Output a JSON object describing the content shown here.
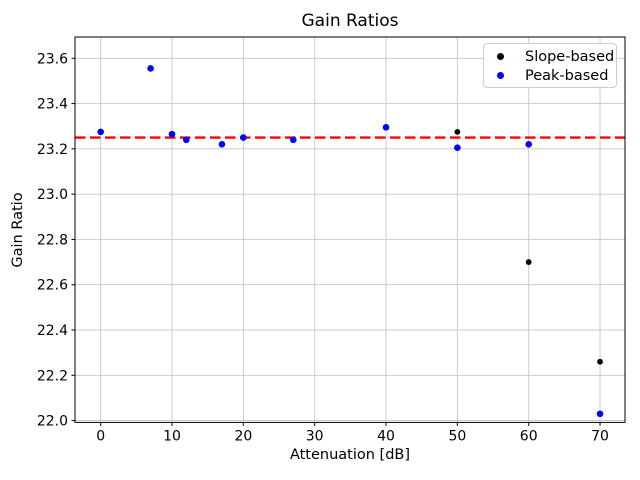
{
  "title": "Gain Ratios",
  "legend": [
    {
      "label": "Slope-based",
      "color": "#000000"
    },
    {
      "label": "Peak-based",
      "color": "#0000ff"
    }
  ],
  "chart_data": {
    "type": "scatter",
    "title": "Gain Ratios",
    "xlabel": "Attenuation [dB]",
    "ylabel": "Gain Ratio",
    "xlim": [
      -3.6,
      73.5
    ],
    "ylim": [
      21.992,
      23.694
    ],
    "x_ticks": [
      0,
      10,
      20,
      30,
      40,
      50,
      60,
      70
    ],
    "y_ticks": [
      22.0,
      22.2,
      22.4,
      22.6,
      22.8,
      23.0,
      23.2,
      23.4,
      23.6
    ],
    "grid": true,
    "grid_color": "#c6c6c6",
    "legend_position": "upper right",
    "series": [
      {
        "name": "Slope-based",
        "color": "#000000",
        "marker_radius": 2.9,
        "points": [
          [
            20,
            23.25
          ],
          [
            50,
            23.275
          ],
          [
            60,
            22.7
          ],
          [
            70,
            22.26
          ]
        ]
      },
      {
        "name": "Peak-based",
        "color": "#0000ff",
        "marker_radius": 3.3,
        "points": [
          [
            0,
            23.275
          ],
          [
            7,
            23.555
          ],
          [
            10,
            23.265
          ],
          [
            12,
            23.24
          ],
          [
            17,
            23.22
          ],
          [
            20,
            23.25
          ],
          [
            27,
            23.24
          ],
          [
            40,
            23.295
          ],
          [
            50,
            23.205
          ],
          [
            60,
            23.22
          ],
          [
            70,
            22.03
          ]
        ]
      }
    ],
    "reference_line": {
      "y": 23.25,
      "color": "#ff0000",
      "style": "dashed"
    }
  }
}
